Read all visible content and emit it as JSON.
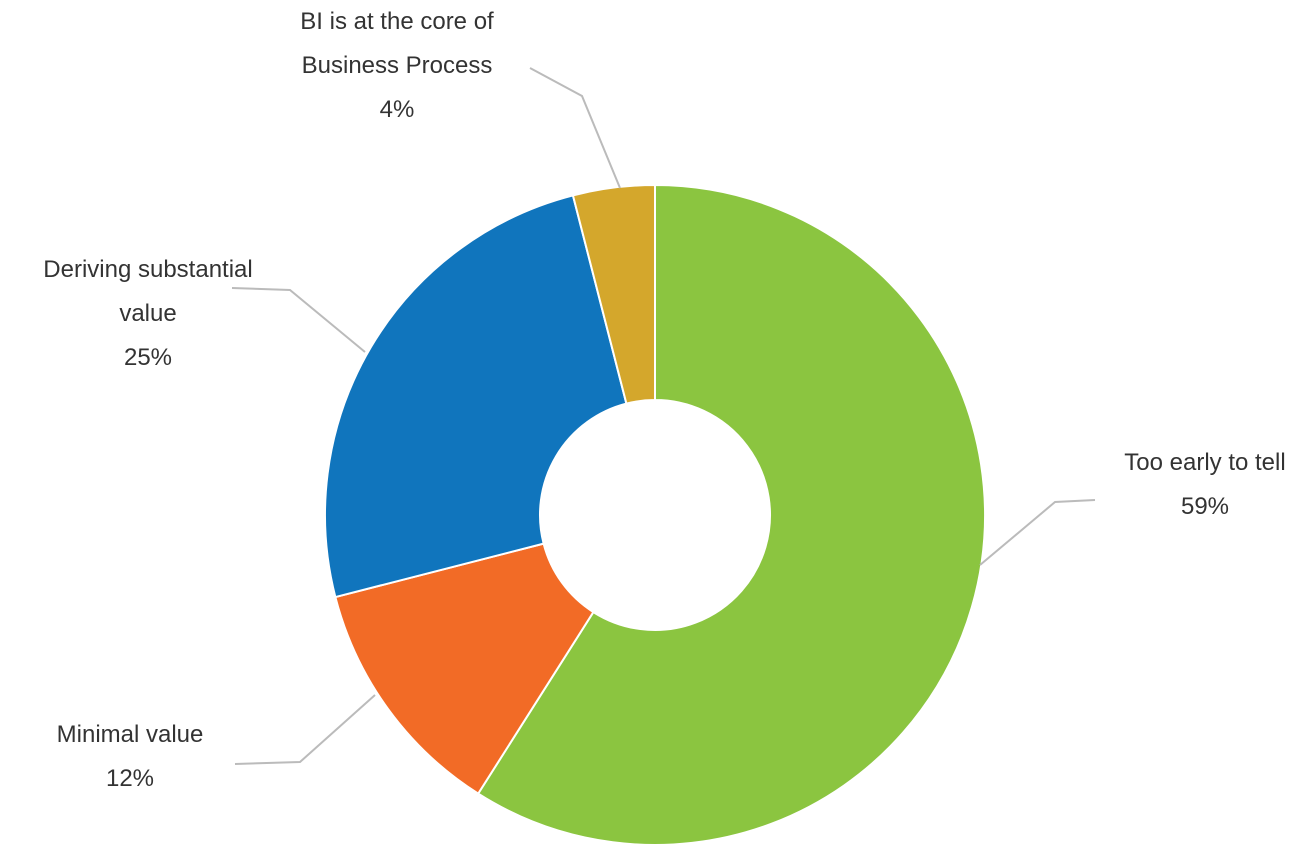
{
  "chart_data": {
    "type": "donut",
    "categories": [
      "Too early to tell",
      "Minimal value",
      "Deriving substantial value",
      "BI is at the core of Business Process"
    ],
    "values": [
      59,
      12,
      25,
      4
    ],
    "value_labels": [
      "59%",
      "12%",
      "25%",
      "4%"
    ],
    "colors": [
      "#8bc540",
      "#f26b26",
      "#1075bd",
      "#d4a72c"
    ]
  }
}
